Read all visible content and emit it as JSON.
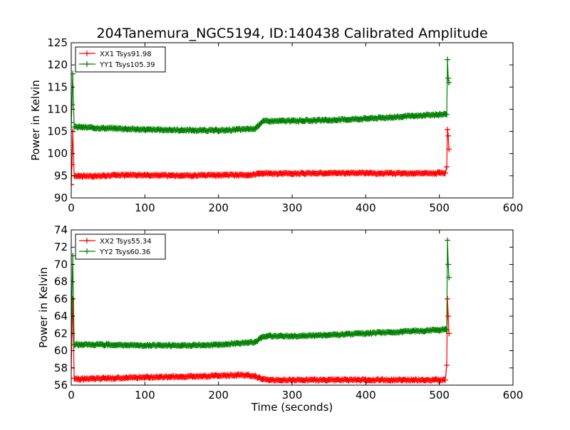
{
  "figure": {
    "title": "204Tanemura_NGC5194, ID:140438 Calibrated Amplitude",
    "xlabel": "Time (seconds)"
  },
  "chart_data": [
    {
      "type": "line",
      "title": "204Tanemura_NGC5194, ID:140438 Calibrated Amplitude",
      "xlabel": "",
      "ylabel": "Power in Kelvin",
      "xlim": [
        0,
        600
      ],
      "ylim": [
        90,
        125
      ],
      "xticks": [
        0,
        100,
        200,
        300,
        400,
        500,
        600
      ],
      "yticks": [
        90,
        95,
        100,
        105,
        110,
        115,
        120,
        125
      ],
      "grid": false,
      "legend_position": "top-left",
      "series": [
        {
          "name": "XX1 Tsys91.98",
          "color": "#ff0000",
          "x": [
            0,
            1,
            2,
            4,
            10,
            30,
            60,
            100,
            150,
            200,
            240,
            255,
            260,
            300,
            350,
            400,
            450,
            500,
            508,
            510,
            511,
            512,
            513
          ],
          "y": [
            93,
            97.5,
            105,
            95,
            95.0,
            94.9,
            95.1,
            95.2,
            95.0,
            95.1,
            95.2,
            95.4,
            95.5,
            95.5,
            95.6,
            95.6,
            95.5,
            95.6,
            95.6,
            97,
            105.4,
            104,
            101
          ]
        },
        {
          "name": "YY1 Tsys105.39",
          "color": "#008000",
          "x": [
            0,
            1,
            2,
            4,
            10,
            30,
            60,
            100,
            150,
            200,
            250,
            255,
            260,
            300,
            350,
            400,
            450,
            500,
            508,
            510,
            511,
            512,
            513
          ],
          "y": [
            107,
            111,
            118,
            106,
            106.0,
            105.8,
            105.7,
            105.4,
            105.3,
            105.2,
            105.6,
            106.5,
            107.3,
            107.4,
            107.5,
            107.9,
            108.3,
            108.8,
            108.9,
            108.8,
            121.2,
            117,
            116
          ]
        }
      ]
    },
    {
      "type": "line",
      "title": "",
      "xlabel": "Time (seconds)",
      "ylabel": "Power in Kelvin",
      "xlim": [
        0,
        600
      ],
      "ylim": [
        56,
        74
      ],
      "xticks": [
        0,
        100,
        200,
        300,
        400,
        500,
        600
      ],
      "yticks": [
        56,
        58,
        60,
        62,
        64,
        66,
        68,
        70,
        72,
        74
      ],
      "grid": false,
      "legend_position": "top-left",
      "series": [
        {
          "name": "XX2 Tsys55.34",
          "color": "#ff0000",
          "x": [
            0,
            1,
            2,
            4,
            10,
            50,
            100,
            150,
            200,
            240,
            250,
            260,
            270,
            300,
            350,
            400,
            450,
            500,
            508,
            510,
            511,
            512,
            513
          ],
          "y": [
            58,
            62,
            66,
            56.8,
            56.7,
            56.8,
            56.9,
            57.0,
            57.1,
            57.2,
            57.0,
            56.7,
            56.6,
            56.6,
            56.6,
            56.6,
            56.6,
            56.6,
            56.6,
            58.3,
            66.0,
            64,
            62
          ]
        },
        {
          "name": "YY2 Tsys60.36",
          "color": "#008000",
          "x": [
            0,
            1,
            2,
            4,
            10,
            50,
            100,
            150,
            200,
            250,
            258,
            265,
            300,
            350,
            400,
            450,
            500,
            508,
            510,
            511,
            512,
            513
          ],
          "y": [
            62,
            66,
            71,
            60.7,
            60.7,
            60.7,
            60.6,
            60.6,
            60.7,
            61.0,
            61.5,
            61.7,
            61.7,
            61.8,
            62.0,
            62.2,
            62.4,
            62.5,
            62.4,
            72.8,
            70,
            68.5
          ]
        }
      ]
    }
  ]
}
